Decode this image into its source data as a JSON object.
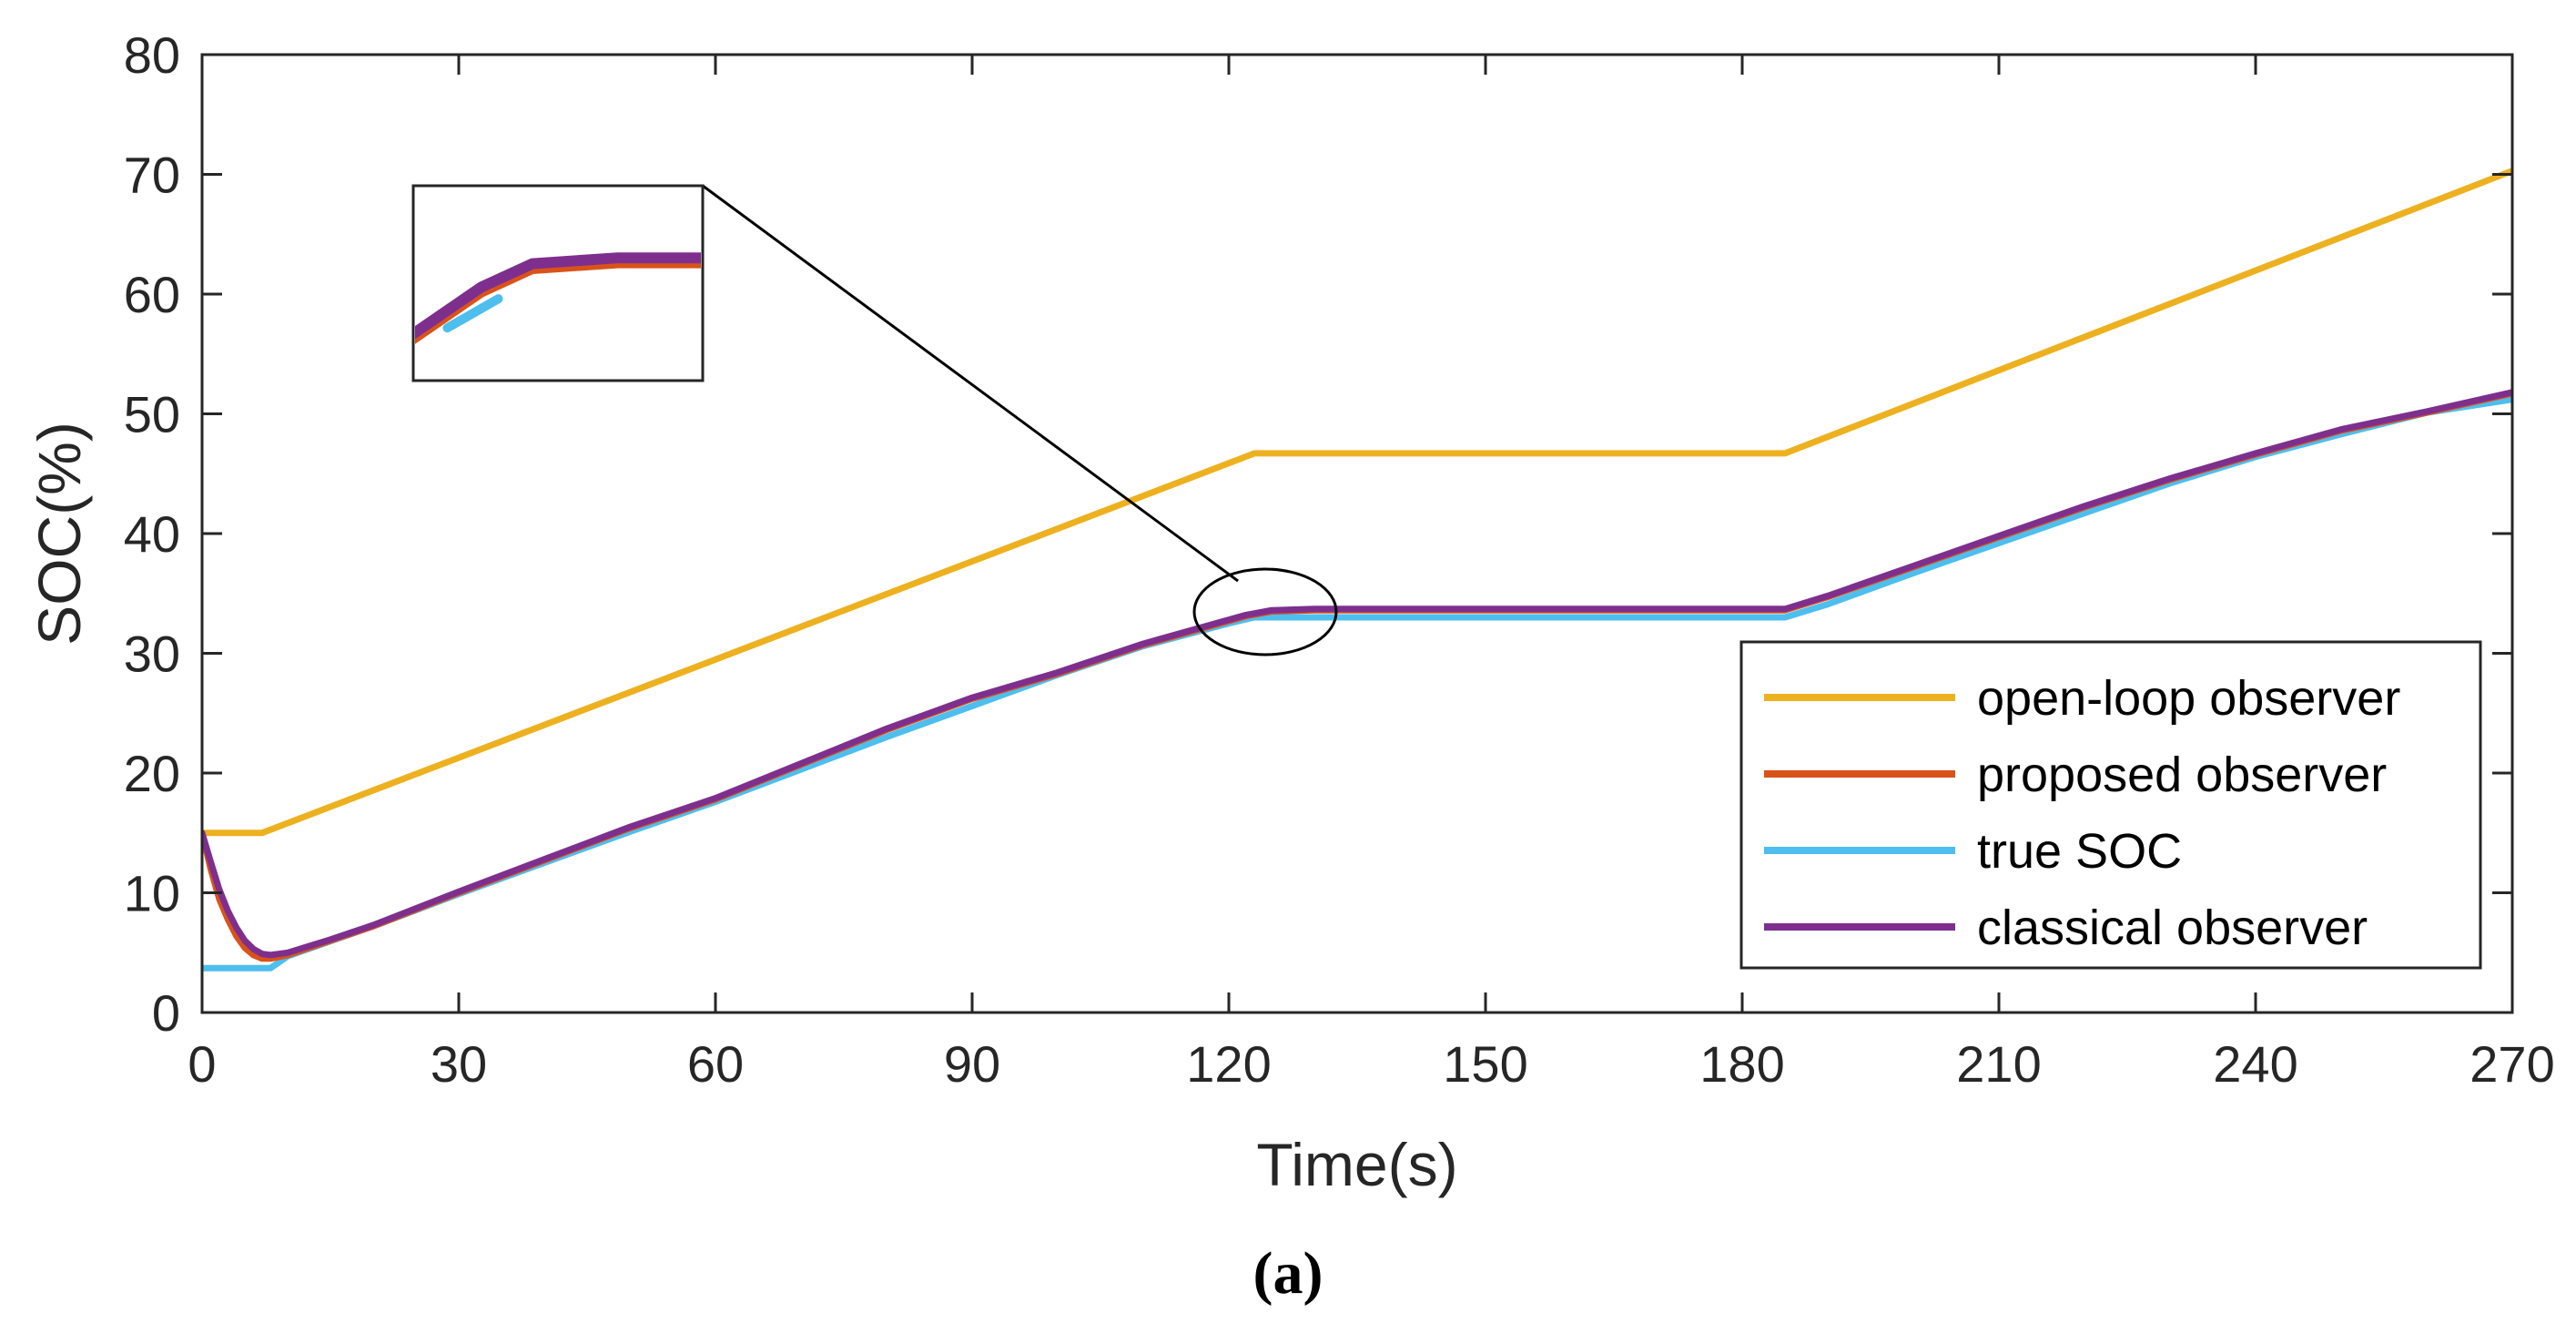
{
  "chart_data": {
    "type": "line",
    "title": "",
    "xlabel": "Time(s)",
    "ylabel": "SOC(%)",
    "xlim": [
      0,
      270
    ],
    "ylim": [
      0,
      80
    ],
    "xticks": [
      0,
      30,
      60,
      90,
      120,
      150,
      180,
      210,
      240,
      270
    ],
    "yticks": [
      0,
      10,
      20,
      30,
      40,
      50,
      60,
      70,
      80
    ],
    "xtick_labels": [
      "0",
      "30",
      "60",
      "90",
      "120",
      "150",
      "180",
      "210",
      "240",
      "270"
    ],
    "ytick_labels": [
      "0",
      "10",
      "20",
      "30",
      "40",
      "50",
      "60",
      "70",
      "80"
    ],
    "grid": false,
    "legend_position": "bottom-right",
    "caption": "(a)",
    "series": [
      {
        "name": "open-loop observer",
        "color": "#EDB120",
        "x": [
          0,
          7,
          123,
          185,
          270
        ],
        "y": [
          15,
          15,
          46.7,
          46.7,
          70.3
        ]
      },
      {
        "name": "proposed observer",
        "color": "#D95319",
        "x": [
          0,
          1,
          2,
          3,
          4,
          5,
          6,
          7,
          8,
          10,
          15,
          20,
          30,
          40,
          50,
          60,
          70,
          80,
          90,
          100,
          110,
          118,
          122,
          125,
          130,
          140,
          150,
          160,
          170,
          180,
          185,
          190,
          200,
          210,
          220,
          230,
          240,
          250,
          260,
          270
        ],
        "y": [
          15,
          12,
          9.5,
          7.8,
          6.4,
          5.4,
          4.8,
          4.5,
          4.5,
          4.8,
          6,
          7.2,
          10,
          12.7,
          15.4,
          17.8,
          20.7,
          23.6,
          26.2,
          28.3,
          30.7,
          32.3,
          33.1,
          33.5,
          33.6,
          33.6,
          33.6,
          33.6,
          33.6,
          33.6,
          33.6,
          34.7,
          37.2,
          39.7,
          42.2,
          44.5,
          46.6,
          48.6,
          50.1,
          51.7
        ]
      },
      {
        "name": "true SOC",
        "color": "#4DBEEE",
        "x": [
          0,
          8,
          10,
          20,
          30,
          40,
          50,
          60,
          70,
          80,
          90,
          100,
          110,
          120,
          123,
          185,
          190,
          200,
          210,
          220,
          230,
          240,
          250,
          260,
          270
        ],
        "y": [
          3.7,
          3.7,
          4.7,
          7.2,
          9.9,
          12.5,
          15.1,
          17.6,
          20.3,
          23,
          25.6,
          28.2,
          30.6,
          32.5,
          33,
          33,
          34.1,
          36.7,
          39.2,
          41.7,
          44.2,
          46.4,
          48.3,
          50.1,
          51.2
        ]
      },
      {
        "name": "classical observer",
        "color": "#7E2F8E",
        "x": [
          0,
          1,
          2,
          3,
          4,
          5,
          6,
          7,
          8,
          10,
          15,
          20,
          30,
          40,
          50,
          60,
          70,
          80,
          90,
          100,
          110,
          118,
          122,
          125,
          130,
          140,
          150,
          160,
          170,
          180,
          185,
          190,
          200,
          210,
          220,
          230,
          240,
          250,
          260,
          270
        ],
        "y": [
          15,
          12.6,
          10.3,
          8.5,
          7.1,
          6,
          5.3,
          4.9,
          4.8,
          5,
          6.1,
          7.3,
          10.1,
          12.8,
          15.5,
          17.9,
          20.8,
          23.7,
          26.3,
          28.4,
          30.8,
          32.4,
          33.2,
          33.6,
          33.7,
          33.7,
          33.7,
          33.7,
          33.7,
          33.7,
          33.7,
          34.8,
          37.3,
          39.8,
          42.3,
          44.6,
          46.7,
          48.7,
          50.2,
          51.8
        ]
      }
    ],
    "zoom": {
      "x_range": [
        118,
        135
      ],
      "y_range": [
        32,
        34.5
      ]
    }
  }
}
